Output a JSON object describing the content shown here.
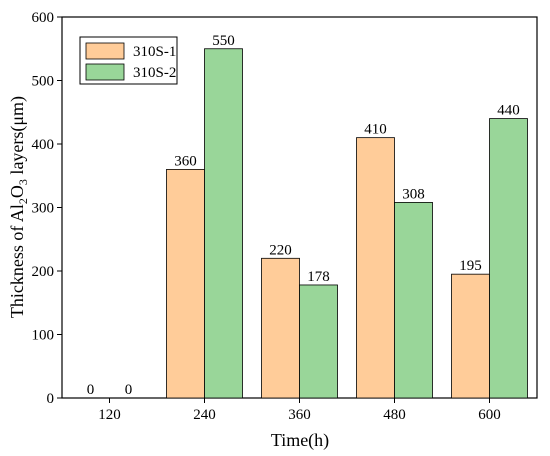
{
  "chart_data": {
    "type": "bar",
    "categories": [
      "120",
      "240",
      "360",
      "480",
      "600"
    ],
    "series": [
      {
        "name": "310S-1",
        "color": "#FFCC99",
        "values": [
          0,
          360,
          220,
          410,
          195
        ]
      },
      {
        "name": "310S-2",
        "color": "#99D699",
        "values": [
          0,
          550,
          178,
          308,
          440
        ]
      }
    ],
    "xlabel": "Time(h)",
    "ylabel": {
      "pre": "Thickness of Al",
      "sub1": "2",
      "mid": "O",
      "sub2": "3",
      "post": " layers(μm)"
    },
    "ylim": [
      0,
      600
    ],
    "yticks": [
      0,
      100,
      200,
      300,
      400,
      500,
      600
    ],
    "legend_position": "top-left",
    "grid": false
  }
}
